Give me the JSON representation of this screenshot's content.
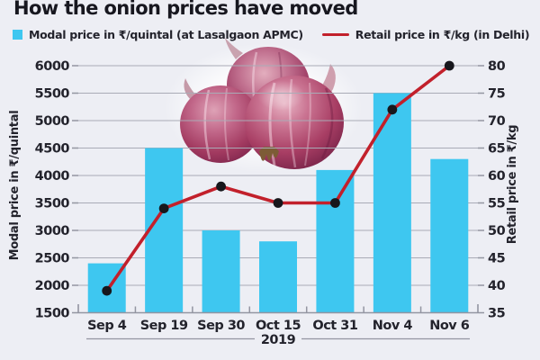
{
  "title": "How the onion prices have moved",
  "legend": [
    {
      "label": "Modal price in ₹/quintal (at Lasalgaon APMC)",
      "swatch": "square",
      "color": "#3EC7F0"
    },
    {
      "label": "Retail price in ₹/kg (in Delhi)",
      "swatch": "line",
      "color": "#C2202B"
    }
  ],
  "chart_data": {
    "type": "bar+line combo",
    "categories": [
      "Sep 4",
      "Sep 19",
      "Sep 30",
      "Oct 15",
      "Oct 31",
      "Nov 4",
      "Nov 6"
    ],
    "x_axis_note": "2019",
    "series": [
      {
        "name": "Modal price in ₹/quintal (at Lasalgaon APMC)",
        "type": "bar",
        "axis": "left",
        "color": "#3EC7F0",
        "values": [
          2400,
          4500,
          3000,
          2800,
          4100,
          5500,
          4300
        ]
      },
      {
        "name": "Retail price in ₹/kg (in Delhi)",
        "type": "line",
        "axis": "right",
        "color": "#C2202B",
        "point_color": "#17171C",
        "values": [
          39,
          54,
          58,
          55,
          55,
          72,
          80
        ]
      }
    ],
    "left_axis": {
      "label": "Modal price in ₹/quintal",
      "min": 1500,
      "max": 6000,
      "step": 500
    },
    "right_axis": {
      "label": "Retail price in ₹/kg",
      "min": 35,
      "max": 80,
      "step": 5
    },
    "grid": true,
    "legend_position": "top",
    "annotation_image": "red-onions-photo"
  },
  "colors": {
    "background": "#EDEEF4",
    "bar": "#3EC7F0",
    "line": "#C2202B",
    "dot": "#17171C",
    "gridline": "#A9ABB6",
    "axis": "#9395A1",
    "text": "#23232C"
  }
}
